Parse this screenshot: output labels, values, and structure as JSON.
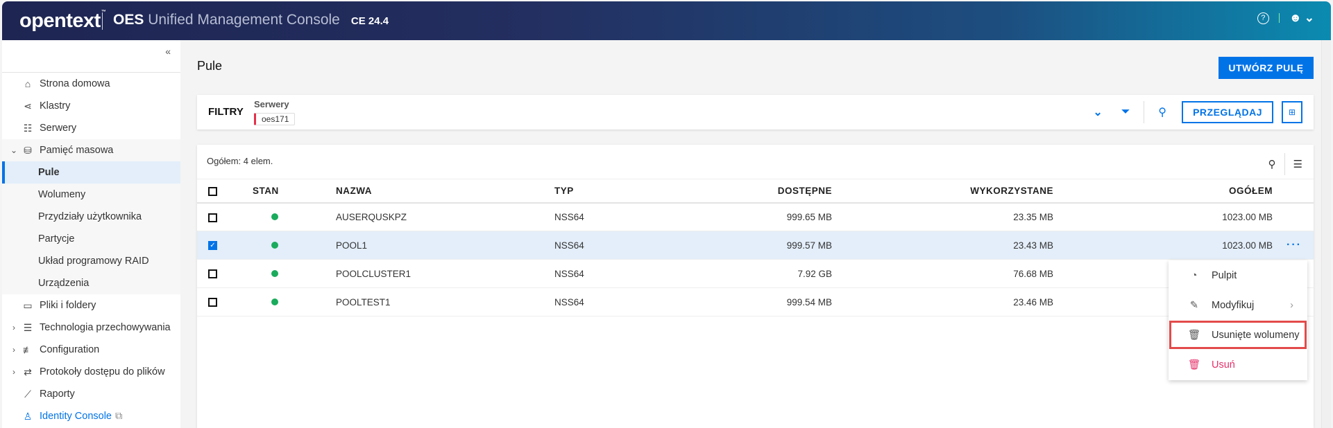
{
  "header": {
    "logo": "opentext",
    "logo_tm": "™",
    "product_bold": "OES",
    "product_rest": "Unified Management Console",
    "version": "CE 24.4",
    "help_icon": "?",
    "user_icon": "user"
  },
  "sidebar": {
    "collapse": "«",
    "items": [
      {
        "label": "Strona domowa",
        "icon": "home-icon"
      },
      {
        "label": "Klastry",
        "icon": "share-icon"
      },
      {
        "label": "Serwery",
        "icon": "server-icon"
      },
      {
        "label": "Pamięć masowa",
        "icon": "database-icon",
        "expanded": true
      },
      {
        "label": "Pule",
        "active": true
      },
      {
        "label": "Wolumeny"
      },
      {
        "label": "Przydziały użytkownika"
      },
      {
        "label": "Partycje"
      },
      {
        "label": "Układ programowy RAID"
      },
      {
        "label": "Urządzenia"
      },
      {
        "label": "Pliki i foldery",
        "icon": "folder-icon"
      },
      {
        "label": "Technologia przechowywania",
        "icon": "storage-icon"
      },
      {
        "label": "Configuration",
        "icon": "sliders-icon"
      },
      {
        "label": "Protokoły dostępu do plików",
        "icon": "swap-icon"
      },
      {
        "label": "Raporty",
        "icon": "chart-icon"
      },
      {
        "label": "Identity Console",
        "icon": "user-gear-icon"
      }
    ]
  },
  "page": {
    "title": "Pule",
    "create_button": "UTWÓRZ PULĘ"
  },
  "filters": {
    "label": "FILTRY",
    "server_label": "Serwery",
    "server_value": "oes171",
    "browse_button": "PRZEGLĄDAJ"
  },
  "table": {
    "total": "Ogółem: 4 elem.",
    "columns": [
      "STAN",
      "NAZWA",
      "TYP",
      "DOSTĘPNE",
      "WYKORZYSTANE",
      "OGÓŁEM"
    ],
    "rows": [
      {
        "checked": false,
        "status": "online",
        "name": "AUSERQUSKPZ",
        "type": "NSS64",
        "available": "999.65 MB",
        "used": "23.35 MB",
        "total": "1023.00 MB"
      },
      {
        "checked": true,
        "status": "online",
        "name": "POOL1",
        "type": "NSS64",
        "available": "999.57 MB",
        "used": "23.43 MB",
        "total": "1023.00 MB"
      },
      {
        "checked": false,
        "status": "online",
        "name": "POOLCLUSTER1",
        "type": "NSS64",
        "available": "7.92 GB",
        "used": "76.68 MB",
        "total": ""
      },
      {
        "checked": false,
        "status": "online",
        "name": "POOLTEST1",
        "type": "NSS64",
        "available": "999.54 MB",
        "used": "23.46 MB",
        "total": ""
      }
    ],
    "status_color": "#1aab5c"
  },
  "context_menu": {
    "items": [
      {
        "label": "Pulpit",
        "icon": "dashboard-icon"
      },
      {
        "label": "Modyfikuj",
        "icon": "edit-icon",
        "submenu": true
      },
      {
        "label": "Usunięte wolumeny",
        "icon": "trash-icon",
        "highlighted": true
      },
      {
        "label": "Usuń",
        "icon": "trash-icon",
        "danger": true
      }
    ]
  },
  "colors": {
    "accent": "#0073e7",
    "danger": "#e5306a",
    "highlight_box": "#e34a4a"
  }
}
